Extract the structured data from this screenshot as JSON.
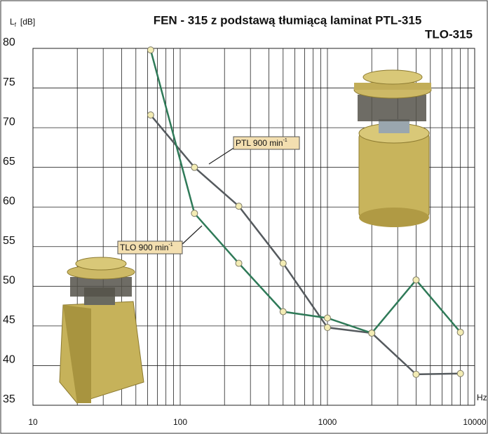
{
  "chart_data": {
    "type": "line",
    "title": "FEN - 315 z podstawą tłumiącą laminat PTL-315",
    "subtitle": "TLO-315",
    "y_label": "L",
    "y_label_sub": "f",
    "y_label_unit": "[dB]",
    "x_label": "Hz",
    "x": [
      63,
      125,
      250,
      500,
      1000,
      2000,
      4000,
      8000
    ],
    "series": [
      {
        "name": "PTL 900 min",
        "name_sup": "-1",
        "color": "#555a5e",
        "values": [
          71.6,
          65,
          60.1,
          52.9,
          44.8,
          44.1,
          38.9,
          39.0
        ]
      },
      {
        "name": "TLO 900 min",
        "name_sup": "-1",
        "color": "#2f7a58",
        "values": [
          79.8,
          59.2,
          52.9,
          46.8,
          46.0,
          44.1,
          50.8,
          44.2
        ]
      }
    ],
    "xlim": [
      10,
      10000
    ],
    "log_x": true,
    "xticks": [
      10,
      100,
      1000,
      10000
    ],
    "xgrid_minor": [
      20,
      30,
      40,
      50,
      60,
      70,
      80,
      90,
      200,
      300,
      400,
      500,
      600,
      700,
      800,
      900,
      2000,
      3000,
      4000,
      5000,
      6000,
      7000,
      8000,
      9000
    ],
    "ylim": [
      35,
      80
    ],
    "yticks": [
      35,
      40,
      45,
      50,
      55,
      60,
      65,
      70,
      75,
      80
    ],
    "grid": true
  }
}
